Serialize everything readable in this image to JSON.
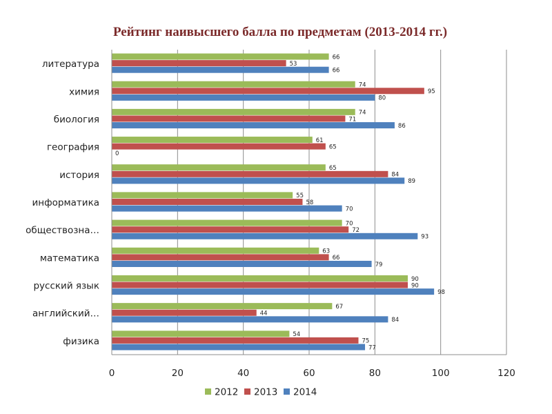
{
  "chart_data": {
    "type": "bar",
    "orientation": "horizontal",
    "title": "Рейтинг наивысшего балла по предметам (2013-2014 гг.)",
    "xlabel": "",
    "ylabel": "",
    "xlim": [
      0,
      120
    ],
    "x_ticks": [
      "0",
      "20",
      "40",
      "60",
      "80",
      "100",
      "120"
    ],
    "grid": "vertical",
    "legend_position": "bottom",
    "categories": [
      "литература",
      "химия",
      "биология",
      "география",
      "история",
      "информатика",
      "обществозна…",
      "математика",
      "русский язык",
      "английский…",
      "физика"
    ],
    "series": [
      {
        "name": "2012",
        "color": "#9bbb59",
        "values": [
          66,
          74,
          74,
          61,
          65,
          55,
          70,
          63,
          90,
          67,
          54
        ]
      },
      {
        "name": "2013",
        "color": "#c0504d",
        "values": [
          53,
          95,
          71,
          65,
          84,
          58,
          72,
          66,
          90,
          44,
          75
        ]
      },
      {
        "name": "2014",
        "color": "#4f81bd",
        "values": [
          66,
          80,
          86,
          0,
          89,
          70,
          93,
          79,
          98,
          84,
          77
        ]
      }
    ]
  }
}
